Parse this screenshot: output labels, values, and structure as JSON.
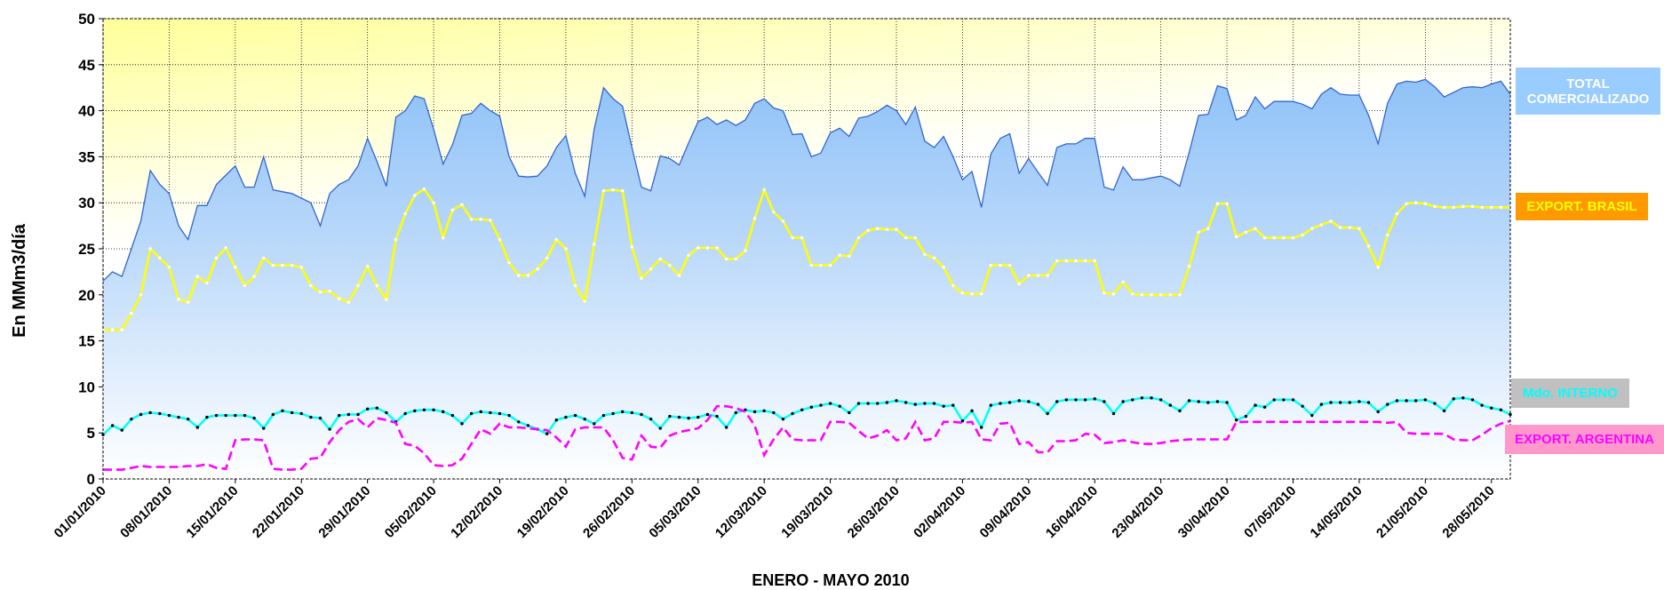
{
  "chart_data": {
    "type": "line",
    "y_label": "En MMm3/día",
    "x_label": "ENERO - MAYO 2010",
    "categories": [
      "01/01/2010",
      null,
      null,
      null,
      null,
      null,
      null,
      "08/01/2010",
      null,
      null,
      null,
      null,
      null,
      null,
      "15/01/2010",
      null,
      null,
      null,
      null,
      null,
      null,
      "22/01/2010",
      null,
      null,
      null,
      null,
      null,
      null,
      "29/01/2010",
      null,
      null,
      null,
      null,
      null,
      null,
      "05/02/2010",
      null,
      null,
      null,
      null,
      null,
      null,
      "12/02/2010",
      null,
      null,
      null,
      null,
      null,
      null,
      "19/02/2010",
      null,
      null,
      null,
      null,
      null,
      null,
      "26/02/2010",
      null,
      null,
      null,
      null,
      null,
      null,
      "05/03/2010",
      null,
      null,
      null,
      null,
      null,
      null,
      "12/03/2010",
      null,
      null,
      null,
      null,
      null,
      null,
      "19/03/2010",
      null,
      null,
      null,
      null,
      null,
      null,
      "26/03/2010",
      null,
      null,
      null,
      null,
      null,
      null,
      "02/04/2010",
      null,
      null,
      null,
      null,
      null,
      null,
      "09/04/2010",
      null,
      null,
      null,
      null,
      null,
      null,
      "16/04/2010",
      null,
      null,
      null,
      null,
      null,
      null,
      "23/04/2010",
      null,
      null,
      null,
      null,
      null,
      null,
      "30/04/2010",
      null,
      null,
      null,
      null,
      null,
      null,
      "07/05/2010",
      null,
      null,
      null,
      null,
      null,
      null,
      "14/05/2010",
      null,
      null,
      null,
      null,
      null,
      null,
      "21/05/2010",
      null,
      null,
      null,
      null,
      null,
      null,
      "28/05/2010",
      null,
      null
    ],
    "series": [
      {
        "name": "TOTAL COMERCIALIZADO",
        "color": "#3366cc",
        "area": true,
        "label_bg": "#99ccff",
        "label_color": "#ffffff",
        "values": [
          21.5,
          22.5,
          22,
          25,
          28,
          33.5,
          32,
          31,
          27.5,
          26,
          29.7,
          29.7,
          32,
          33,
          34,
          31.7,
          31.7,
          35,
          31.4,
          31.2,
          31,
          30.5,
          30,
          27.5,
          31,
          32,
          32.5,
          34,
          37,
          34.5,
          31.8,
          39.3,
          40,
          41.6,
          41.3,
          38,
          34.2,
          36.3,
          39.5,
          39.7,
          40.8,
          40,
          39.4,
          35,
          32.9,
          32.8,
          32.9,
          34,
          36,
          37.3,
          33.2,
          30.7,
          38,
          42.5,
          41.3,
          40.5,
          36,
          31.7,
          31.3,
          35.1,
          34.8,
          34.1,
          36.5,
          38.8,
          39.3,
          38.5,
          39,
          38.4,
          39,
          40.8,
          41.3,
          40.3,
          40,
          37.4,
          37.5,
          35,
          35.4,
          37.6,
          38.1,
          37.2,
          39.2,
          39.4,
          39.9,
          40.6,
          40,
          38.5,
          40.4,
          36.7,
          36,
          37.2,
          35,
          32.5,
          33.4,
          29.5,
          35.3,
          37,
          37.5,
          33.2,
          34.8,
          33.3,
          31.9,
          36,
          36.4,
          36.4,
          37,
          37,
          31.7,
          31.4,
          33.9,
          32.5,
          32.5,
          32.7,
          32.9,
          32.5,
          31.8,
          35.5,
          39.5,
          39.6,
          42.7,
          42.4,
          39,
          39.5,
          41.5,
          40.2,
          41,
          41,
          41,
          40.7,
          40.2,
          41.8,
          42.5,
          41.8,
          41.7,
          41.7,
          39.5,
          36.4,
          40.8,
          42.9,
          43.2,
          43.1,
          43.4,
          42.6,
          41.5,
          42,
          42.5,
          42.6,
          42.5,
          42.9,
          43.2,
          41.8
        ]
      },
      {
        "name": "EXPORT. BRASIL",
        "color": "#ffff00",
        "marker": "#ffffff",
        "label_bg": "#ff9900",
        "label_color": "#ffff00",
        "values": [
          16.2,
          16.2,
          16.2,
          18,
          20,
          25,
          24,
          23,
          19.5,
          19.2,
          22,
          21.3,
          24,
          25.1,
          23,
          21,
          22,
          24,
          23.2,
          23.2,
          23.2,
          23,
          21,
          20.3,
          20.4,
          19.6,
          19.2,
          21,
          23.1,
          21,
          19.5,
          26,
          28.8,
          30.8,
          31.5,
          30,
          26.2,
          29.2,
          29.8,
          28.2,
          28.2,
          28.1,
          26,
          23.5,
          22.1,
          22.1,
          22.8,
          24,
          26,
          25,
          21,
          19.3,
          25.5,
          31.3,
          31.4,
          31.3,
          25.2,
          21.8,
          22.8,
          23.9,
          23.2,
          22.1,
          24.3,
          25.1,
          25.1,
          25.1,
          23.9,
          23.9,
          24.8,
          28.3,
          31.4,
          29,
          28,
          26.2,
          26.2,
          23.2,
          23.2,
          23.2,
          24.3,
          24.2,
          26.2,
          27,
          27.2,
          27.1,
          27.1,
          26.2,
          26.2,
          24.4,
          24,
          23,
          21,
          20.2,
          20.1,
          20.1,
          23.2,
          23.2,
          23.2,
          21.2,
          22.1,
          22.1,
          22.1,
          23.7,
          23.7,
          23.7,
          23.7,
          23.7,
          20.2,
          20.1,
          21.4,
          20.1,
          20,
          20,
          20,
          20,
          20,
          23.1,
          26.8,
          27.2,
          29.9,
          29.9,
          26.3,
          26.8,
          27.2,
          26.2,
          26.2,
          26.2,
          26.2,
          26.5,
          27.2,
          27.6,
          28,
          27.3,
          27.3,
          27.2,
          25.3,
          23,
          26.5,
          28.8,
          29.9,
          30,
          29.9,
          29.6,
          29.5,
          29.5,
          29.6,
          29.6,
          29.5,
          29.5,
          29.5,
          29.5
        ]
      },
      {
        "name": "Mdo.  INTERNO",
        "color": "#00ffff",
        "marker": "#000000",
        "label_bg": "#c0c0c0",
        "label_color": "#00ffff",
        "values": [
          4.8,
          5.8,
          5.3,
          6.5,
          7,
          7.2,
          7.1,
          6.9,
          6.7,
          6.5,
          5.6,
          6.7,
          6.9,
          6.9,
          6.9,
          6.9,
          6.6,
          5.5,
          7,
          7.4,
          7.2,
          7.1,
          6.7,
          6.6,
          5.4,
          6.9,
          7,
          7,
          7.6,
          7.7,
          7.2,
          6.2,
          7.1,
          7.4,
          7.5,
          7.5,
          7.3,
          6.9,
          6,
          7.1,
          7.3,
          7.2,
          7.1,
          6.9,
          6.2,
          5.8,
          5.4,
          4.9,
          6.4,
          6.7,
          6.9,
          6.5,
          6,
          6.9,
          7.1,
          7.3,
          7.2,
          7,
          6.5,
          5.5,
          6.8,
          6.7,
          6.6,
          6.7,
          7,
          6.8,
          5.6,
          7.2,
          7.5,
          7.3,
          7.4,
          7.2,
          6.5,
          7.1,
          7.5,
          7.8,
          8,
          8.2,
          7.9,
          7.2,
          8.2,
          8.2,
          8.2,
          8.3,
          8.5,
          8.3,
          8.1,
          8.2,
          8.2,
          7.9,
          8,
          6.3,
          7.4,
          5.6,
          8,
          8.2,
          8.3,
          8.5,
          8.4,
          8.1,
          7.1,
          8.4,
          8.6,
          8.6,
          8.6,
          8.7,
          8.4,
          7.1,
          8.4,
          8.6,
          8.8,
          8.8,
          8.6,
          8,
          7.4,
          8.5,
          8.4,
          8.3,
          8.4,
          8.3,
          6.4,
          6.8,
          8,
          7.8,
          8.6,
          8.6,
          8.6,
          7.9,
          6.9,
          8.1,
          8.3,
          8.3,
          8.3,
          8.4,
          8.3,
          7.3,
          8.1,
          8.5,
          8.5,
          8.5,
          8.6,
          8.2,
          7.4,
          8.7,
          8.8,
          8.6,
          8,
          7.7,
          7.5,
          7
        ]
      },
      {
        "name": "EXPORT. ARGENTINA",
        "color": "#ff00ff",
        "dashed": true,
        "label_bg": "#ff99cc",
        "label_color": "#ff00ff",
        "values": [
          1,
          1,
          1,
          1.2,
          1.4,
          1.3,
          1.3,
          1.3,
          1.3,
          1.4,
          1.4,
          1.6,
          1.2,
          1.1,
          4.2,
          4.3,
          4.3,
          4.2,
          1.1,
          1,
          1,
          1.1,
          2.2,
          2.3,
          4,
          5.3,
          6.2,
          6.5,
          5.6,
          6.6,
          6.4,
          6.1,
          3.8,
          3.6,
          2.8,
          1.5,
          1.4,
          1.5,
          2.2,
          3.8,
          5.4,
          4.9,
          6,
          5.6,
          5.6,
          5.5,
          5.4,
          5.3,
          4.5,
          3.5,
          5.4,
          5.6,
          5.6,
          5.6,
          4.2,
          2.3,
          2.1,
          4.7,
          3.5,
          3.4,
          4.7,
          5.1,
          5.3,
          5.5,
          6.4,
          7.9,
          7.9,
          7.7,
          7.3,
          5.8,
          2.6,
          4.3,
          5.6,
          4.3,
          4.2,
          4.2,
          4.2,
          6.2,
          6.2,
          6.1,
          5.2,
          4.4,
          4.7,
          5.3,
          4.2,
          4.4,
          6.2,
          4.2,
          4.4,
          6.2,
          6.2,
          6.1,
          6.2,
          4.3,
          4.2,
          6,
          6.1,
          3.8,
          4,
          2.9,
          2.9,
          4.1,
          4.1,
          4.2,
          4.9,
          4.8,
          3.9,
          4,
          4.2,
          4,
          3.8,
          3.8,
          3.9,
          4.1,
          4.2,
          4.3,
          4.3,
          4.3,
          4.3,
          4.3,
          6.2,
          6.2,
          6.2,
          6.2,
          6.2,
          6.2,
          6.2,
          6.2,
          6.2,
          6.2,
          6.2,
          6.2,
          6.2,
          6.2,
          6.2,
          6.2,
          6.1,
          6.2,
          5,
          4.9,
          4.9,
          4.9,
          4.9,
          4.3,
          4.2,
          4.2,
          4.8,
          5.5,
          6,
          6.3
        ]
      }
    ],
    "ylim": [
      0,
      50
    ],
    "yticks": [
      0,
      5,
      10,
      15,
      20,
      25,
      30,
      35,
      40,
      45,
      50
    ],
    "grid": true
  }
}
